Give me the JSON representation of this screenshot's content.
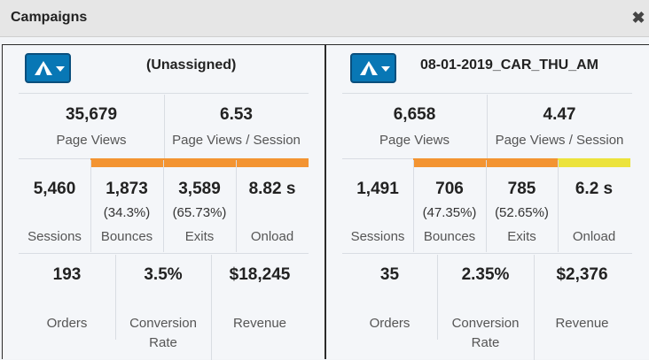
{
  "window": {
    "title": "Campaigns",
    "close_glyph": "✖"
  },
  "colors": {
    "orange": "#f39432",
    "yellow": "#ece33c",
    "button": "#0877b5"
  },
  "panels": [
    {
      "campaign": "(Unassigned)",
      "page_views": "35,679",
      "page_views_label": "Page Views",
      "pvs": "6.53",
      "pvs_label": "Page Views / Session",
      "sessions": "5,460",
      "sessions_label": "Sessions",
      "bounces": "1,873",
      "bounces_pct": "(34.3%)",
      "bounces_label": "Bounces",
      "exits": "3,589",
      "exits_pct": "(65.73%)",
      "exits_label": "Exits",
      "onload": "8.82 s",
      "onload_label": "Onload",
      "orders": "193",
      "orders_label": "Orders",
      "conversion": "3.5%",
      "conversion_label_1": "Conversion",
      "conversion_label_2": "Rate",
      "revenue": "$18,245",
      "revenue_label": "Revenue",
      "onload_bar_color": "orange"
    },
    {
      "campaign": "08-01-2019_CAR_THU_AM",
      "page_views": "6,658",
      "page_views_label": "Page Views",
      "pvs": "4.47",
      "pvs_label": "Page Views / Session",
      "sessions": "1,491",
      "sessions_label": "Sessions",
      "bounces": "706",
      "bounces_pct": "(47.35%)",
      "bounces_label": "Bounces",
      "exits": "785",
      "exits_pct": "(52.65%)",
      "exits_label": "Exits",
      "onload": "6.2 s",
      "onload_label": "Onload",
      "orders": "35",
      "orders_label": "Orders",
      "conversion": "2.35%",
      "conversion_label_1": "Conversion",
      "conversion_label_2": "Rate",
      "revenue": "$2,376",
      "revenue_label": "Revenue",
      "onload_bar_color": "yellow"
    }
  ]
}
